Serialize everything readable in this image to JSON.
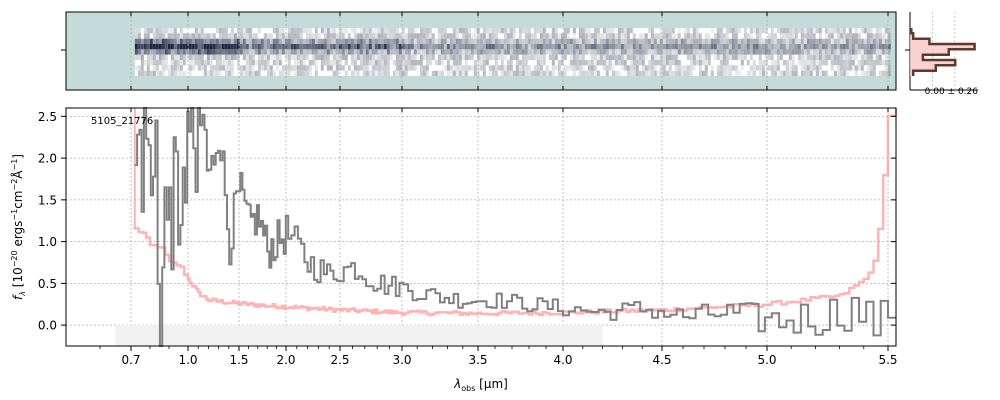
{
  "chart_data": [
    {
      "type": "heatmap",
      "panel": "2d-spectrum",
      "xlim": [
        0.6,
        5.52
      ],
      "background_color": "#c4dbda",
      "trace_color": "#1e2a44",
      "data_start_um": 0.72,
      "data_end_um": 5.5,
      "rows": 9,
      "peak_row": 3,
      "grid": true
    },
    {
      "type": "line",
      "panel": "1d-spectrum",
      "title": "",
      "xlabel_parts": [
        "λ",
        "obs",
        " [μm]"
      ],
      "ylabel": "f",
      "ylabel_sub": "λ",
      "ylabel_rest": " [10",
      "ylabel_exp1": "−20",
      "ylabel_unit": " ergs",
      "ylabel_exp2": "−1",
      "ylabel_cm": "cm",
      "ylabel_exp3": "−2",
      "ylabel_ang": "Å",
      "ylabel_exp4": "−1",
      "ylabel_close": "]",
      "annotation": "5105_21776",
      "xscale": "spectral (denser at short wavelengths)",
      "xlim": [
        0.6,
        5.52
      ],
      "ylim": [
        -0.25,
        2.6
      ],
      "xticks": [
        0.7,
        1.0,
        1.5,
        2.0,
        2.5,
        3.0,
        3.5,
        4.0,
        4.5,
        5.0,
        5.5
      ],
      "xtick_labels": [
        "0.7",
        "1.0",
        "1.5",
        "2.0",
        "2.5",
        "3.0",
        "3.5",
        "4.0",
        "4.5",
        "5.0",
        "5.5"
      ],
      "yticks": [
        0.0,
        0.5,
        1.0,
        1.5,
        2.0,
        2.5
      ],
      "ytick_labels": [
        "0.0",
        "0.5",
        "1.0",
        "1.5",
        "2.0",
        "2.5"
      ],
      "grid": true,
      "series": [
        {
          "role": "flux",
          "color": "#808080",
          "x": [
            0.72,
            0.75,
            0.78,
            0.8,
            0.82,
            0.85,
            0.88,
            0.9,
            0.93,
            0.96,
            1.0,
            1.05,
            1.1,
            1.2,
            1.3,
            1.4,
            1.5,
            1.6,
            1.7,
            1.8,
            2.0,
            2.2,
            2.4,
            2.6,
            2.8,
            3.0,
            3.2,
            3.4,
            3.6,
            3.8,
            4.0,
            4.2,
            4.4,
            4.6,
            4.8,
            5.0,
            5.2,
            5.35,
            5.45,
            5.5
          ],
          "y": [
            1.4,
            1.8,
            2.6,
            0.9,
            2.6,
            0.1,
            1.9,
            1.0,
            2.0,
            1.3,
            2.6,
            1.6,
            2.6,
            1.7,
            2.4,
            1.0,
            1.6,
            1.2,
            1.3,
            0.9,
            1.1,
            0.75,
            0.6,
            0.7,
            0.5,
            0.45,
            0.35,
            0.3,
            0.3,
            0.25,
            0.2,
            0.15,
            0.2,
            0.1,
            0.15,
            0.05,
            0.1,
            0.2,
            0.0,
            0.15
          ],
          "noise": [
            0.0,
            0.0,
            0.0,
            0.0,
            0.0,
            0.0,
            0.0,
            0.0,
            0.0,
            0.0,
            0.0,
            0.0,
            0.0,
            0.3,
            0.3,
            0.3,
            0.3,
            0.25,
            0.25,
            0.25,
            0.25,
            0.2,
            0.15,
            0.15,
            0.15,
            0.12,
            0.12,
            0.1,
            0.1,
            0.1,
            0.1,
            0.1,
            0.12,
            0.12,
            0.15,
            0.2,
            0.25,
            0.25,
            0.25,
            0.25
          ]
        },
        {
          "role": "model",
          "color": "#ff9999",
          "x": [
            0.72,
            0.76,
            0.8,
            0.85,
            0.9,
            0.95,
            1.0,
            1.1,
            1.2,
            1.4,
            1.6,
            1.8,
            2.0,
            2.5,
            3.0,
            3.5,
            4.0,
            4.5,
            5.0,
            5.3,
            5.4,
            5.45,
            5.5
          ],
          "y": [
            1.15,
            1.1,
            0.95,
            0.95,
            0.75,
            0.72,
            0.55,
            0.38,
            0.3,
            0.27,
            0.25,
            0.23,
            0.22,
            0.18,
            0.15,
            0.14,
            0.15,
            0.18,
            0.25,
            0.35,
            0.55,
            0.8,
            2.5
          ]
        }
      ],
      "shaded_band": {
        "x": [
          0.65,
          4.2
        ],
        "y": [
          -0.25,
          0.0
        ],
        "color": "#f2f2f2"
      }
    },
    {
      "type": "line",
      "panel": "profile",
      "label": "0.00 ± 0.26",
      "color": "#5c3a2e",
      "fill_color": "#f8c6c6",
      "values": [
        0.02,
        0.05,
        0.3,
        1.0,
        0.6,
        0.2,
        0.7,
        0.4,
        0.05
      ],
      "xmax": 1.0
    }
  ]
}
